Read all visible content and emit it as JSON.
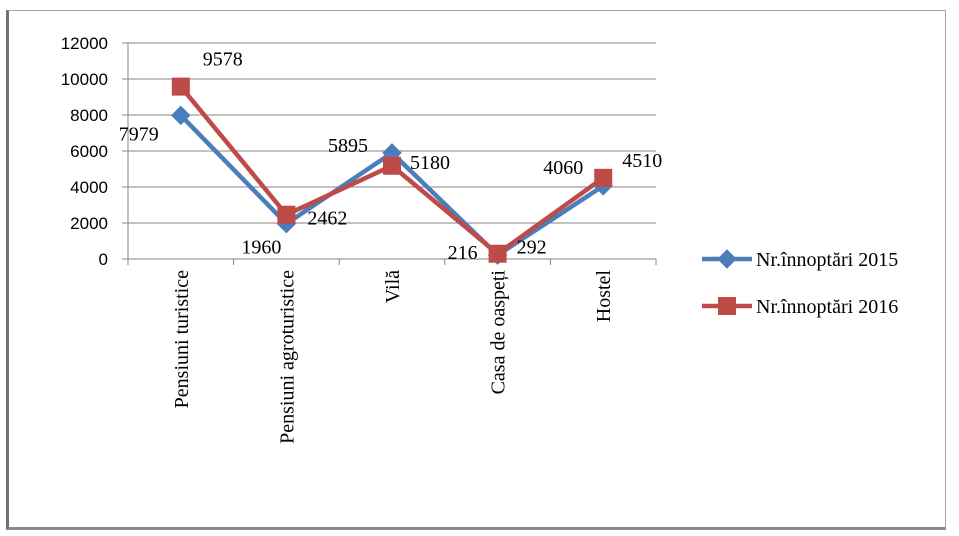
{
  "chart_data": {
    "type": "line",
    "categories": [
      "Pensiuni turistice",
      "Pensiuni agroturistice",
      "Vilă",
      "Casa de oaspeți",
      "Hostel"
    ],
    "series": [
      {
        "name": "Nr.înnoptări 2015",
        "values": [
          7979,
          1960,
          5895,
          216,
          4060
        ],
        "color": "#4a7ebb",
        "marker": "diamond"
      },
      {
        "name": "Nr.înnoptări 2016",
        "values": [
          9578,
          2462,
          5180,
          292,
          4510
        ],
        "color": "#be4b48",
        "marker": "square"
      }
    ],
    "data_labels": [
      [
        "7979",
        "1960",
        "5895",
        "216",
        "4060"
      ],
      [
        "9578",
        "2462",
        "5180",
        "292",
        "4510"
      ]
    ],
    "yticks": [
      0,
      2000,
      4000,
      6000,
      8000,
      10000,
      12000
    ],
    "ylim": [
      0,
      12000
    ],
    "grid": true,
    "legend": "right",
    "title": "",
    "xlabel": "",
    "ylabel": ""
  }
}
